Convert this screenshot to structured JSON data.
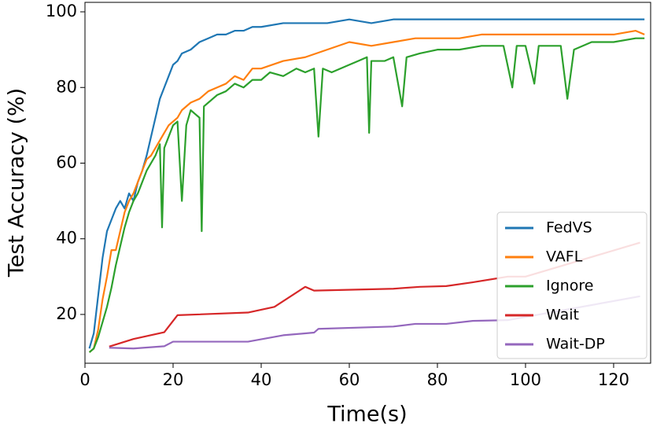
{
  "chart_data": {
    "type": "line",
    "x_label": "Time(s)",
    "y_label": "Test Accuracy (%)",
    "xlim": [
      0,
      128.4
    ],
    "ylim": [
      7.1,
      102.5
    ],
    "xticks": [
      0,
      20,
      40,
      60,
      80,
      100,
      120
    ],
    "yticks": [
      20,
      40,
      60,
      80,
      100
    ],
    "legend": "lower right",
    "series": [
      {
        "name": "FedVS",
        "color": "#1f77b4",
        "x": [
          1,
          2,
          3,
          4,
          5,
          6,
          7,
          8,
          9,
          10,
          11,
          12,
          13,
          14,
          15,
          16,
          17,
          18,
          19,
          20,
          21,
          22,
          24,
          26,
          28,
          30,
          32,
          34,
          36,
          38,
          40,
          45,
          50,
          55,
          60,
          65,
          70,
          75,
          80,
          85,
          90,
          95,
          100,
          105,
          110,
          115,
          120,
          125,
          127
        ],
        "values": [
          11,
          15,
          25,
          35,
          42,
          45,
          48,
          50,
          48,
          52,
          50,
          55,
          58,
          62,
          67,
          72,
          77,
          80,
          83,
          86,
          87,
          89,
          90,
          92,
          93,
          94,
          94,
          95,
          95,
          96,
          96,
          97,
          97,
          97,
          98,
          97,
          98,
          98,
          98,
          98,
          98,
          98,
          98,
          98,
          98,
          98,
          98,
          98,
          98
        ]
      },
      {
        "name": "VAFL",
        "color": "#ff7f0e",
        "x": [
          1,
          2,
          3,
          4,
          5,
          6,
          7,
          8,
          9,
          10,
          11,
          12,
          13,
          14,
          15,
          16,
          17,
          18,
          19,
          20,
          21,
          22,
          24,
          26,
          28,
          30,
          32,
          34,
          36,
          38,
          40,
          45,
          50,
          55,
          60,
          65,
          70,
          75,
          80,
          85,
          90,
          95,
          100,
          105,
          110,
          115,
          120,
          125,
          127
        ],
        "values": [
          10,
          11,
          16,
          24,
          30,
          37,
          37,
          42,
          47,
          50,
          52,
          55,
          58,
          61,
          62,
          64,
          66,
          68,
          70,
          71,
          72,
          74,
          76,
          77,
          79,
          80,
          81,
          83,
          82,
          85,
          85,
          87,
          88,
          90,
          92,
          91,
          92,
          93,
          93,
          93,
          94,
          94,
          94,
          94,
          94,
          94,
          94,
          95,
          94
        ]
      },
      {
        "name": "Ignore",
        "color": "#2ca02c",
        "x": [
          1,
          2,
          3,
          4,
          5,
          6,
          7,
          8,
          9,
          10,
          11,
          12,
          13,
          14,
          15,
          16,
          17,
          17.5,
          18,
          19,
          20,
          21,
          22,
          23,
          24,
          25,
          26,
          26.5,
          27,
          28,
          30,
          32,
          34,
          36,
          38,
          40,
          42,
          45,
          48,
          50,
          52,
          53,
          54,
          56,
          60,
          62,
          64,
          64.5,
          65,
          68,
          70,
          72,
          73,
          76,
          80,
          85,
          90,
          95,
          97,
          98,
          100,
          102,
          103,
          105,
          108,
          109.5,
          111,
          115,
          120,
          125,
          127
        ],
        "values": [
          10,
          11,
          14,
          18,
          22,
          27,
          33,
          38,
          43,
          47,
          50,
          52,
          55,
          58,
          60,
          62,
          65,
          43,
          64,
          67,
          70,
          71,
          50,
          70,
          74,
          73,
          72,
          42,
          75,
          76,
          78,
          79,
          81,
          80,
          82,
          82,
          84,
          83,
          85,
          84,
          85,
          67,
          85,
          84,
          86,
          87,
          88,
          68,
          87,
          87,
          88,
          75,
          88,
          89,
          90,
          90,
          91,
          91,
          80,
          91,
          91,
          81,
          91,
          91,
          91,
          77,
          90,
          92,
          92,
          93,
          93
        ]
      },
      {
        "name": "Wait",
        "color": "#d62728",
        "x": [
          5.5,
          11,
          18,
          21,
          37,
          43,
          50,
          52,
          70,
          76,
          82,
          88,
          96,
          100,
          126
        ],
        "values": [
          11.5,
          13.5,
          15.3,
          19.8,
          20.5,
          22,
          27.3,
          26.3,
          26.8,
          27.3,
          27.5,
          28.5,
          30,
          30,
          39
        ]
      },
      {
        "name": "Wait-DP",
        "color": "#9467bd",
        "x": [
          5.5,
          11,
          18,
          20,
          37,
          45,
          52,
          53,
          70,
          75,
          82,
          88,
          96,
          126
        ],
        "values": [
          11.2,
          11,
          11.6,
          12.8,
          12.8,
          14.5,
          15.2,
          16.2,
          16.8,
          17.5,
          17.5,
          18.3,
          18.5,
          24.8
        ]
      }
    ]
  }
}
